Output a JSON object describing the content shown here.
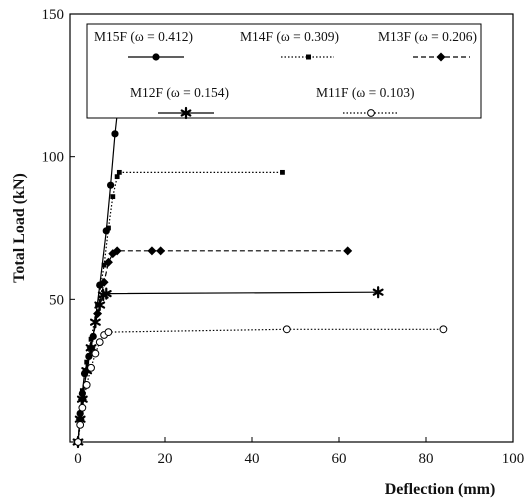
{
  "chart_data": {
    "type": "line",
    "xlabel": "Deflection (mm)",
    "ylabel": "Total Load (kN)",
    "xlim": [
      0,
      100
    ],
    "ylim": [
      0,
      150
    ],
    "xticks": [
      0,
      20,
      40,
      60,
      80,
      100
    ],
    "yticks": [
      50,
      100,
      150
    ],
    "grid": false,
    "legend_position": "top",
    "series": [
      {
        "name": "M15F (ω = 0.412)",
        "style": "solid",
        "marker": "circle-filled",
        "color": "#000000",
        "points": [
          [
            0,
            0
          ],
          [
            0.5,
            10
          ],
          [
            1,
            17
          ],
          [
            1.5,
            24
          ],
          [
            2.5,
            30
          ],
          [
            3.5,
            37
          ],
          [
            5,
            55
          ],
          [
            6.5,
            74
          ],
          [
            7.5,
            90
          ],
          [
            8.5,
            108
          ],
          [
            9,
            115
          ],
          [
            9.3,
            118
          ],
          [
            9.6,
            119
          ],
          [
            10,
            119.5
          ],
          [
            16,
            119.5
          ],
          [
            21,
            119.5
          ],
          [
            41,
            119.5
          ]
        ]
      },
      {
        "name": "M14F (ω = 0.309)",
        "style": "dotted",
        "marker": "square-small",
        "color": "#000000",
        "points": [
          [
            0,
            0
          ],
          [
            0.5,
            10
          ],
          [
            1,
            18
          ],
          [
            2,
            28
          ],
          [
            3,
            36
          ],
          [
            4.5,
            48
          ],
          [
            6,
            62
          ],
          [
            7,
            75
          ],
          [
            8,
            86
          ],
          [
            9,
            93
          ],
          [
            9.5,
            94.5
          ],
          [
            47,
            94.5
          ]
        ]
      },
      {
        "name": "M13F (ω = 0.206)",
        "style": "dashed",
        "marker": "diamond-filled",
        "color": "#000000",
        "points": [
          [
            0,
            0
          ],
          [
            0.5,
            8
          ],
          [
            1,
            15
          ],
          [
            2,
            25
          ],
          [
            3,
            33
          ],
          [
            4.5,
            45
          ],
          [
            6,
            56
          ],
          [
            7,
            63
          ],
          [
            8,
            66
          ],
          [
            9,
            67
          ],
          [
            17,
            67
          ],
          [
            19,
            67
          ],
          [
            62,
            67
          ]
        ]
      },
      {
        "name": "M12F (ω = 0.154)",
        "style": "solid",
        "marker": "star",
        "color": "#000000",
        "points": [
          [
            0,
            0
          ],
          [
            0.5,
            8
          ],
          [
            1,
            15
          ],
          [
            2,
            25
          ],
          [
            3,
            33
          ],
          [
            4,
            42
          ],
          [
            5,
            48
          ],
          [
            5.8,
            51.5
          ],
          [
            6.5,
            52
          ],
          [
            69,
            52.5
          ]
        ]
      },
      {
        "name": "M11F (ω = 0.103)",
        "style": "dotted",
        "marker": "circle-open",
        "color": "#000000",
        "points": [
          [
            0,
            0
          ],
          [
            0.5,
            6
          ],
          [
            1,
            12
          ],
          [
            2,
            20
          ],
          [
            3,
            26
          ],
          [
            4,
            31
          ],
          [
            5,
            35
          ],
          [
            6,
            37.5
          ],
          [
            7,
            38.5
          ],
          [
            48,
            39.5
          ],
          [
            84,
            39.5
          ]
        ]
      }
    ]
  }
}
